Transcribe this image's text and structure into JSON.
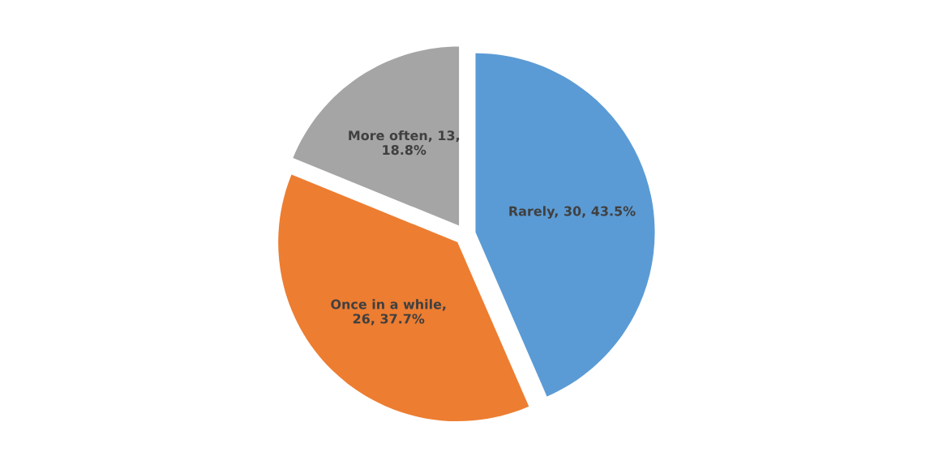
{
  "chart_data": {
    "type": "pie",
    "categories": [
      "Rarely",
      "Once in a while",
      "More often"
    ],
    "values": [
      30,
      26,
      13
    ],
    "colors": [
      "#5b9bd5",
      "#ed7d31",
      "#a5a5a5"
    ],
    "value_labels": [
      ", 30, 43.5%",
      ",\n26, 37.7%",
      ", 13,\n18.8%"
    ]
  }
}
